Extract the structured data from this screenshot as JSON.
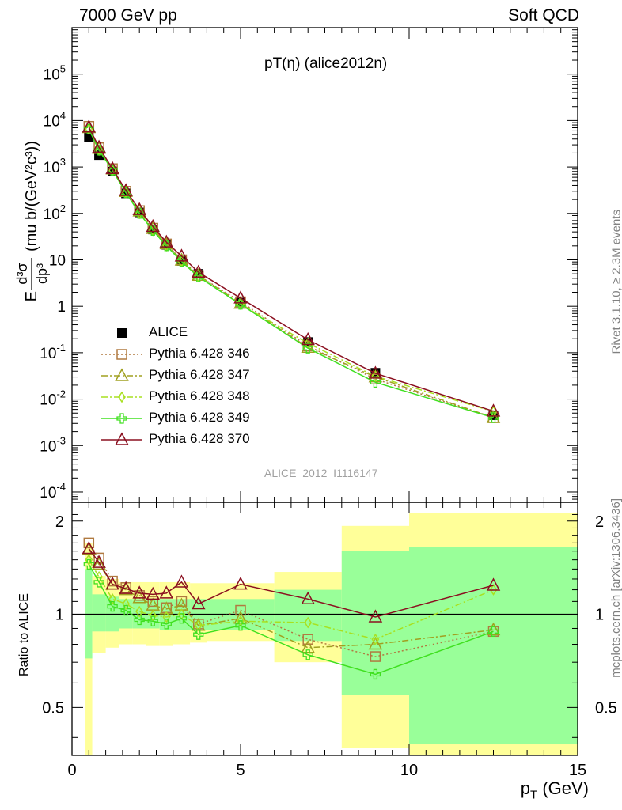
{
  "header": {
    "left": "7000 GeV pp",
    "right": "Soft QCD"
  },
  "plot_title": "pT(η) (alice2012n)",
  "side_text": {
    "rivet": "Rivet 3.1.10, ≥ 2.3M events",
    "mcplots": "mcplots.cern.ch [arXiv:1306.3436]"
  },
  "reference_label": "ALICE_2012_I1116147",
  "legend": [
    {
      "label": "ALICE",
      "color": "#000000",
      "marker": "filled-square",
      "line": "none"
    },
    {
      "label": "Pythia 6.428 346",
      "color": "#b07a40",
      "marker": "open-square",
      "line": "dotted"
    },
    {
      "label": "Pythia 6.428 347",
      "color": "#a0a020",
      "marker": "open-triangle",
      "line": "dashdot"
    },
    {
      "label": "Pythia 6.428 348",
      "color": "#a8e020",
      "marker": "open-diamond",
      "line": "dashdot"
    },
    {
      "label": "Pythia 6.428 349",
      "color": "#40e020",
      "marker": "open-cross",
      "line": "solid"
    },
    {
      "label": "Pythia 6.428 370",
      "color": "#8b1020",
      "marker": "open-triangle",
      "line": "solid"
    }
  ],
  "chart_data": [
    {
      "type": "scatter",
      "panel": "main",
      "ylabel": "E d³σ/dp³ (mu b/(GeV²c³))",
      "ylabel_parts": {
        "E": "E",
        "num": "d³σ",
        "den": "dp³",
        "unit": "(mu b/(GeV²c³))"
      },
      "log_y": true,
      "xlim": [
        0,
        15
      ],
      "ylim": [
        6e-05,
        1000000.0
      ],
      "y_ticks": [
        {
          "v": 100000.0,
          "label": "10^5"
        },
        {
          "v": 10000.0,
          "label": "10^4"
        },
        {
          "v": 1000.0,
          "label": "10^3"
        },
        {
          "v": 100,
          "label": "10^2"
        },
        {
          "v": 10,
          "label": "10"
        },
        {
          "v": 1,
          "label": "1"
        },
        {
          "v": 0.1,
          "label": "10^-1"
        },
        {
          "v": 0.01,
          "label": "10^-2"
        },
        {
          "v": 0.001,
          "label": "10^-3"
        },
        {
          "v": 0.0001,
          "label": "10^-4"
        }
      ],
      "x": [
        0.5,
        0.8,
        1.2,
        1.6,
        2.0,
        2.4,
        2.8,
        3.25,
        3.75,
        5.0,
        7.0,
        9.0,
        12.5
      ],
      "series": [
        {
          "name": "ALICE",
          "values": [
            4400,
            1800,
            800,
            270,
            105,
            45,
            21,
            9.5,
            5.0,
            1.2,
            0.17,
            0.037,
            0.0045
          ]
        },
        {
          "name": "Pythia 6.428 346",
          "values": [
            7500,
            2600,
            920,
            300,
            115,
            48,
            22,
            10,
            4.6,
            1.25,
            0.14,
            0.027,
            0.004
          ]
        },
        {
          "name": "Pythia 6.428 347",
          "values": [
            7000,
            2500,
            900,
            295,
            112,
            47,
            22,
            9.8,
            4.6,
            1.15,
            0.13,
            0.03,
            0.004
          ]
        },
        {
          "name": "Pythia 6.428 348",
          "values": [
            6500,
            2300,
            850,
            280,
            100,
            43,
            20,
            9.2,
            4.4,
            1.1,
            0.16,
            0.031,
            0.0054
          ]
        },
        {
          "name": "Pythia 6.428 349",
          "values": [
            6500,
            2300,
            850,
            280,
            100,
            43,
            20,
            9.2,
            4.3,
            1.1,
            0.125,
            0.023,
            0.004
          ]
        },
        {
          "name": "Pythia 6.428 370",
          "values": [
            7200,
            2650,
            920,
            310,
            120,
            52,
            24,
            12,
            5.4,
            1.5,
            0.19,
            0.036,
            0.0055
          ]
        }
      ]
    },
    {
      "type": "scatter",
      "panel": "ratio",
      "ylabel": "Ratio to ALICE",
      "xlabel": "p_T (GeV)",
      "xlabel_parts": {
        "p": "p",
        "sub": "T",
        "unit": "(GeV)"
      },
      "log_y": true,
      "xlim": [
        0,
        15
      ],
      "ylim": [
        0.35,
        2.3
      ],
      "x_ticks": [
        0,
        5,
        10,
        15
      ],
      "y_ticks": [
        {
          "v": 0.5,
          "label": "0.5"
        },
        {
          "v": 1,
          "label": "1"
        },
        {
          "v": 2,
          "label": "2"
        }
      ],
      "bands": [
        {
          "x0": 0.4,
          "x1": 0.6,
          "y_low": 0.3,
          "y_high": 1.7,
          "g_low": 0.72,
          "g_high": 1.4
        },
        {
          "x0": 0.6,
          "x1": 1.0,
          "y_low": 0.75,
          "y_high": 1.33,
          "g_low": 0.88,
          "g_high": 1.16
        },
        {
          "x0": 1.0,
          "x1": 1.4,
          "y_low": 0.78,
          "y_high": 1.3,
          "g_low": 0.88,
          "g_high": 1.14
        },
        {
          "x0": 1.4,
          "x1": 1.8,
          "y_low": 0.8,
          "y_high": 1.27,
          "g_low": 0.9,
          "g_high": 1.12
        },
        {
          "x0": 1.8,
          "x1": 2.2,
          "y_low": 0.8,
          "y_high": 1.27,
          "g_low": 0.9,
          "g_high": 1.12
        },
        {
          "x0": 2.2,
          "x1": 2.6,
          "y_low": 0.79,
          "y_high": 1.27,
          "g_low": 0.9,
          "g_high": 1.12
        },
        {
          "x0": 2.6,
          "x1": 3.0,
          "y_low": 0.79,
          "y_high": 1.27,
          "g_low": 0.89,
          "g_high": 1.12
        },
        {
          "x0": 3.0,
          "x1": 3.5,
          "y_low": 0.8,
          "y_high": 1.27,
          "g_low": 0.89,
          "g_high": 1.12
        },
        {
          "x0": 3.5,
          "x1": 4.0,
          "y_low": 0.81,
          "y_high": 1.26,
          "g_low": 0.89,
          "g_high": 1.12
        },
        {
          "x0": 4.0,
          "x1": 6.0,
          "y_low": 0.82,
          "y_high": 1.26,
          "g_low": 0.89,
          "g_high": 1.12
        },
        {
          "x0": 6.0,
          "x1": 8.0,
          "y_low": 0.7,
          "y_high": 1.37,
          "g_low": 0.82,
          "g_high": 1.2
        },
        {
          "x0": 8.0,
          "x1": 10.0,
          "y_low": 0.37,
          "y_high": 1.93,
          "g_low": 0.55,
          "g_high": 1.6
        },
        {
          "x0": 10.0,
          "x1": 15.0,
          "y_low": 0.35,
          "y_high": 2.12,
          "g_low": 0.38,
          "g_high": 1.65
        }
      ],
      "x": [
        0.5,
        0.8,
        1.2,
        1.6,
        2.0,
        2.4,
        2.8,
        3.25,
        3.75,
        5.0,
        7.0,
        9.0,
        12.5
      ],
      "series": [
        {
          "name": "Pythia 6.428 346",
          "values": [
            1.7,
            1.52,
            1.28,
            1.22,
            1.15,
            1.1,
            1.05,
            1.1,
            0.93,
            1.03,
            0.83,
            0.73,
            0.88
          ]
        },
        {
          "name": "Pythia 6.428 347",
          "values": [
            1.62,
            1.45,
            1.25,
            1.2,
            1.13,
            1.07,
            1.04,
            1.07,
            0.92,
            0.97,
            0.78,
            0.8,
            0.89
          ]
        },
        {
          "name": "Pythia 6.428 348",
          "values": [
            1.5,
            1.32,
            1.12,
            1.08,
            1.02,
            0.99,
            0.98,
            1.0,
            0.92,
            0.95,
            0.94,
            0.83,
            1.2
          ]
        },
        {
          "name": "Pythia 6.428 349",
          "values": [
            1.45,
            1.27,
            1.06,
            1.03,
            0.96,
            0.95,
            0.93,
            0.97,
            0.86,
            0.92,
            0.74,
            0.64,
            0.88
          ]
        },
        {
          "name": "Pythia 6.428 370",
          "values": [
            1.63,
            1.47,
            1.25,
            1.21,
            1.17,
            1.16,
            1.17,
            1.27,
            1.08,
            1.25,
            1.12,
            0.98,
            1.24
          ]
        }
      ]
    }
  ]
}
